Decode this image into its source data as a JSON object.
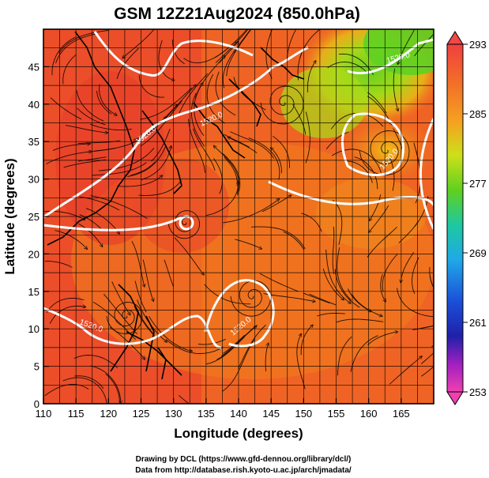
{
  "chart_data": {
    "type": "heatmap",
    "title": "GSM 12Z21Aug2024 (850.0hPa)",
    "xlabel": "Longitude (degrees)",
    "ylabel": "Latitude  (degrees)",
    "xlim": [
      110,
      170
    ],
    "ylim": [
      0,
      50
    ],
    "x_ticks": [
      110,
      115,
      120,
      125,
      130,
      135,
      140,
      145,
      150,
      155,
      160,
      165
    ],
    "y_ticks": [
      0,
      5,
      10,
      15,
      20,
      25,
      30,
      35,
      40,
      45
    ],
    "grid": true,
    "colorbar": {
      "ticks": [
        293,
        285,
        277,
        269,
        261,
        253
      ],
      "min": 253,
      "max": 293,
      "position": "right"
    },
    "contour_labels": [
      "1520.0",
      "1520.0",
      "1520.0",
      "1520.0",
      "1520.0",
      "1520.0"
    ],
    "overlay": "streamlines"
  },
  "colors": {
    "warm": "#e8402a",
    "orange": "#f07a1a",
    "green": "#7fd61e",
    "contour": "#ffffff",
    "coast": "#000000"
  },
  "credits": {
    "line1": "Drawing by DCL (https://www.gfd-dennou.org/library/dcl/)",
    "line2": "Data from http://database.rish.kyoto-u.ac.jp/arch/jmadata/"
  }
}
